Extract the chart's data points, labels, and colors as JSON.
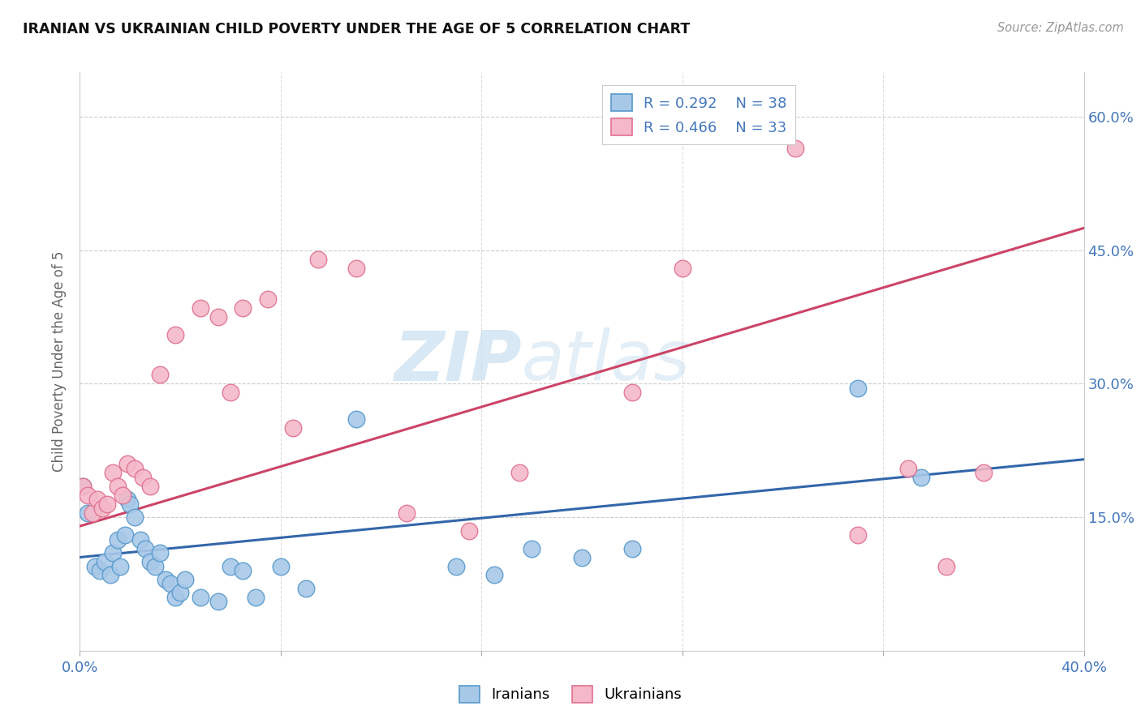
{
  "title": "IRANIAN VS UKRAINIAN CHILD POVERTY UNDER THE AGE OF 5 CORRELATION CHART",
  "source": "Source: ZipAtlas.com",
  "ylabel": "Child Poverty Under the Age of 5",
  "xlim": [
    0.0,
    0.4
  ],
  "ylim": [
    0.0,
    0.65
  ],
  "xticks": [
    0.0,
    0.08,
    0.16,
    0.24,
    0.32,
    0.4
  ],
  "xticklabels": [
    "0.0%",
    "",
    "",
    "",
    "",
    "40.0%"
  ],
  "ytick_positions": [
    0.15,
    0.3,
    0.45,
    0.6
  ],
  "ytick_labels": [
    "15.0%",
    "30.0%",
    "45.0%",
    "60.0%"
  ],
  "watermark1": "ZIP",
  "watermark2": "atlas",
  "legend_r_blue": "0.292",
  "legend_n_blue": "38",
  "legend_r_pink": "0.466",
  "legend_n_pink": "33",
  "legend_label_blue": "Iranians",
  "legend_label_pink": "Ukrainians",
  "blue_fill": "#a8c8e8",
  "blue_edge": "#5599cc",
  "pink_fill": "#f4b8c8",
  "pink_edge": "#e07090",
  "blue_line": "#3366aa",
  "pink_line": "#cc4466",
  "iranians_x": [
    0.001,
    0.003,
    0.006,
    0.008,
    0.01,
    0.012,
    0.013,
    0.015,
    0.016,
    0.018,
    0.019,
    0.02,
    0.022,
    0.024,
    0.026,
    0.028,
    0.03,
    0.032,
    0.034,
    0.036,
    0.038,
    0.04,
    0.042,
    0.048,
    0.055,
    0.06,
    0.065,
    0.07,
    0.08,
    0.09,
    0.11,
    0.15,
    0.165,
    0.18,
    0.2,
    0.22,
    0.31,
    0.335
  ],
  "iranians_y": [
    0.185,
    0.155,
    0.095,
    0.09,
    0.1,
    0.085,
    0.11,
    0.125,
    0.095,
    0.13,
    0.17,
    0.165,
    0.15,
    0.125,
    0.115,
    0.1,
    0.095,
    0.11,
    0.08,
    0.075,
    0.06,
    0.065,
    0.08,
    0.06,
    0.055,
    0.095,
    0.09,
    0.06,
    0.095,
    0.07,
    0.26,
    0.095,
    0.085,
    0.115,
    0.105,
    0.115,
    0.295,
    0.195
  ],
  "ukrainians_x": [
    0.001,
    0.003,
    0.005,
    0.007,
    0.009,
    0.011,
    0.013,
    0.015,
    0.017,
    0.019,
    0.022,
    0.025,
    0.028,
    0.032,
    0.038,
    0.048,
    0.055,
    0.06,
    0.065,
    0.075,
    0.085,
    0.095,
    0.11,
    0.13,
    0.155,
    0.175,
    0.22,
    0.24,
    0.285,
    0.31,
    0.33,
    0.345,
    0.36
  ],
  "ukrainians_y": [
    0.185,
    0.175,
    0.155,
    0.17,
    0.16,
    0.165,
    0.2,
    0.185,
    0.175,
    0.21,
    0.205,
    0.195,
    0.185,
    0.31,
    0.355,
    0.385,
    0.375,
    0.29,
    0.385,
    0.395,
    0.25,
    0.44,
    0.43,
    0.155,
    0.135,
    0.2,
    0.29,
    0.43,
    0.565,
    0.13,
    0.205,
    0.095,
    0.2
  ],
  "blue_trend_x": [
    0.0,
    0.4
  ],
  "blue_trend_y": [
    0.105,
    0.215
  ],
  "pink_trend_x": [
    0.0,
    0.4
  ],
  "pink_trend_y": [
    0.14,
    0.475
  ]
}
